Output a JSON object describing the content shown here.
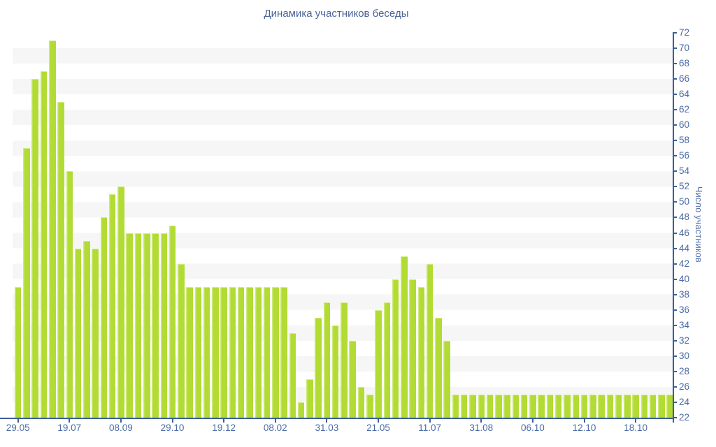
{
  "title": "Динамика участников беседы",
  "y_axis": {
    "title": "Число участников"
  },
  "chart_data": {
    "type": "bar",
    "title": "Динамика участников беседы",
    "xlabel": "",
    "ylabel": "Число участников",
    "ylim": [
      22,
      72
    ],
    "ytick_step": 2,
    "grid": "alternating horizontal bands",
    "legend": "none",
    "bar_color": "#b2db33",
    "band_color": "#f6f6f6",
    "axis_color": "#3b5e99",
    "label_color": "#4a6ba6",
    "title_color": "#4a6496",
    "y_tick_labels": [
      72,
      70,
      68,
      66,
      64,
      62,
      60,
      58,
      56,
      54,
      52,
      50,
      48,
      46,
      44,
      42,
      40,
      38,
      36,
      34,
      32,
      30,
      28,
      26,
      24,
      22
    ],
    "x_tick_labels": [
      "29.05",
      "19.07",
      "08.09",
      "29.10",
      "19.12",
      "08.02",
      "31.03",
      "21.05",
      "11.07",
      "31.08",
      "06.10",
      "12.10",
      "18.10"
    ],
    "x_tick_every": 6,
    "values": [
      39,
      57,
      66,
      67,
      71,
      63,
      54,
      44,
      45,
      44,
      48,
      51,
      52,
      46,
      46,
      46,
      46,
      46,
      47,
      42,
      39,
      39,
      39,
      39,
      39,
      39,
      39,
      39,
      39,
      39,
      39,
      39,
      33,
      24,
      27,
      35,
      37,
      34,
      37,
      32,
      26,
      25,
      36,
      37,
      40,
      43,
      40,
      39,
      42,
      35,
      32,
      25,
      25,
      25,
      25,
      25,
      25,
      25,
      25,
      25,
      25,
      25,
      25,
      25,
      25,
      25,
      25,
      25,
      25,
      25,
      25,
      25,
      25,
      25,
      25,
      25,
      25
    ]
  }
}
